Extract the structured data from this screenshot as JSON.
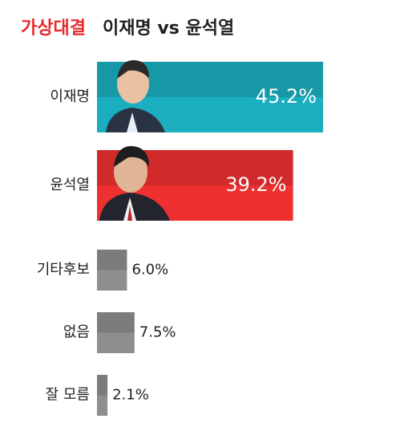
{
  "chart_data": {
    "type": "bar",
    "orientation": "horizontal",
    "title_parts": [
      "가상대결",
      "이재명 vs 윤석열"
    ],
    "title_colors": [
      "#e8282c",
      "#222222"
    ],
    "categories": [
      "이재명",
      "윤석열",
      "기타후보",
      "없음",
      "잘 모름"
    ],
    "values": [
      45.2,
      39.2,
      6.0,
      7.5,
      2.1
    ],
    "value_labels": [
      "45.2%",
      "39.2%",
      "6.0%",
      "7.5%",
      "2.1%"
    ],
    "colors": [
      "#1aaebf",
      "#ee3030",
      "#8e8e8e",
      "#8e8e8e",
      "#8e8e8e"
    ]
  }
}
